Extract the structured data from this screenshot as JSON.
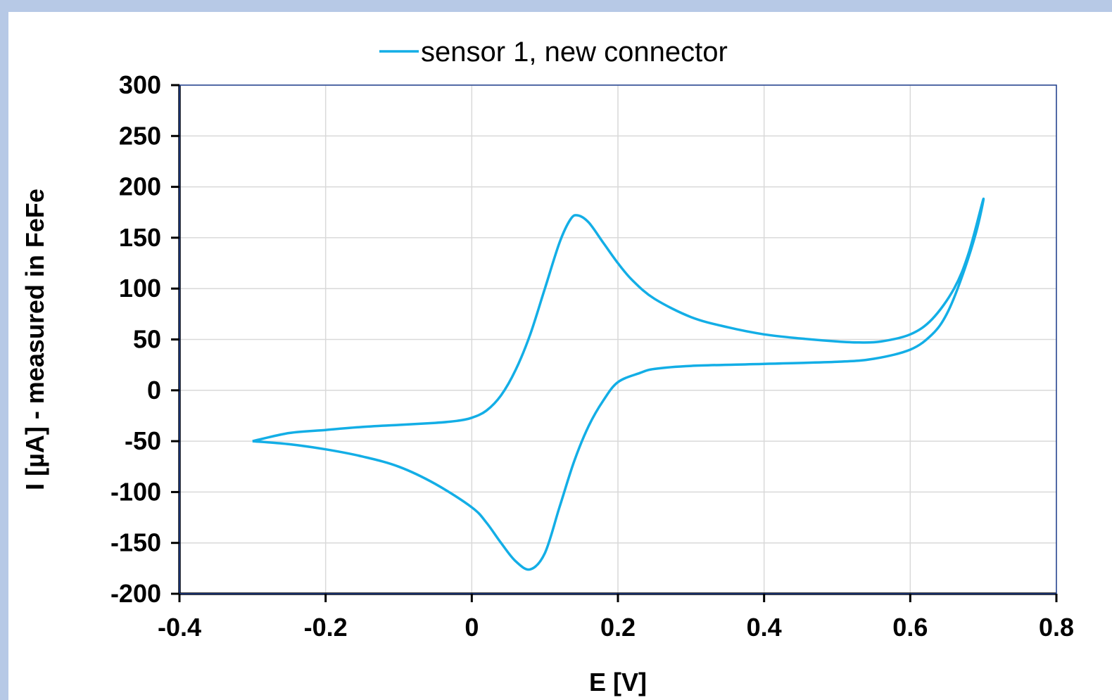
{
  "chart_data": {
    "type": "line",
    "title": "",
    "xlabel": "E [V]",
    "ylabel": "I [µA] - measured in FeFe",
    "xlim": [
      -0.4,
      0.8
    ],
    "ylim": [
      -200,
      300
    ],
    "xticks": [
      "-0.4",
      "-0.2",
      "0",
      "0.2",
      "0.4",
      "0.6",
      "0.8"
    ],
    "yticks": [
      "300",
      "250",
      "200",
      "150",
      "100",
      "50",
      "0",
      "-50",
      "-100",
      "-150",
      "-200"
    ],
    "grid": true,
    "legend_position": "top",
    "series": [
      {
        "name": "sensor 1, new connector",
        "color": "#13aee6",
        "points": [
          [
            -0.3,
            -50
          ],
          [
            -0.25,
            -42
          ],
          [
            -0.2,
            -39
          ],
          [
            -0.15,
            -36
          ],
          [
            -0.1,
            -34
          ],
          [
            -0.05,
            -32
          ],
          [
            -0.02,
            -30
          ],
          [
            0.0,
            -27
          ],
          [
            0.02,
            -20
          ],
          [
            0.04,
            -5
          ],
          [
            0.06,
            20
          ],
          [
            0.08,
            55
          ],
          [
            0.1,
            100
          ],
          [
            0.12,
            145
          ],
          [
            0.135,
            168
          ],
          [
            0.145,
            172
          ],
          [
            0.16,
            165
          ],
          [
            0.18,
            145
          ],
          [
            0.2,
            125
          ],
          [
            0.22,
            108
          ],
          [
            0.25,
            90
          ],
          [
            0.3,
            72
          ],
          [
            0.35,
            62
          ],
          [
            0.4,
            55
          ],
          [
            0.45,
            51
          ],
          [
            0.5,
            48
          ],
          [
            0.53,
            47
          ],
          [
            0.56,
            48
          ],
          [
            0.6,
            55
          ],
          [
            0.63,
            70
          ],
          [
            0.66,
            100
          ],
          [
            0.68,
            135
          ],
          [
            0.7,
            188
          ],
          [
            0.69,
            155
          ],
          [
            0.67,
            110
          ],
          [
            0.65,
            75
          ],
          [
            0.63,
            55
          ],
          [
            0.6,
            40
          ],
          [
            0.55,
            31
          ],
          [
            0.5,
            28
          ],
          [
            0.4,
            26
          ],
          [
            0.3,
            24
          ],
          [
            0.25,
            21
          ],
          [
            0.23,
            17
          ],
          [
            0.2,
            8
          ],
          [
            0.18,
            -10
          ],
          [
            0.16,
            -35
          ],
          [
            0.14,
            -70
          ],
          [
            0.12,
            -115
          ],
          [
            0.1,
            -160
          ],
          [
            0.08,
            -176
          ],
          [
            0.06,
            -168
          ],
          [
            0.04,
            -150
          ],
          [
            0.02,
            -130
          ],
          [
            0.0,
            -115
          ],
          [
            -0.05,
            -92
          ],
          [
            -0.1,
            -75
          ],
          [
            -0.15,
            -65
          ],
          [
            -0.2,
            -58
          ],
          [
            -0.25,
            -53
          ],
          [
            -0.3,
            -50
          ]
        ]
      }
    ]
  }
}
